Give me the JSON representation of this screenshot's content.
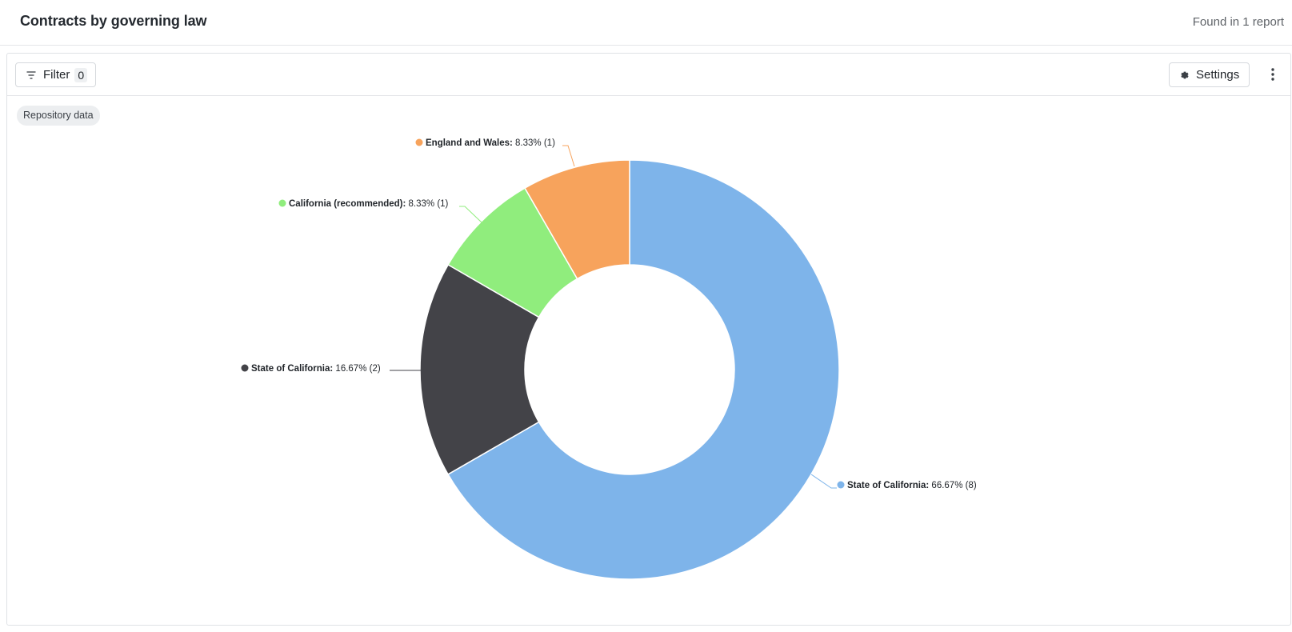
{
  "header": {
    "title": "Contracts by governing law",
    "found": "Found in 1 report"
  },
  "toolbar": {
    "filter_label": "Filter",
    "filter_count": "0",
    "settings_label": "Settings"
  },
  "tag": "Repository data",
  "colors": {
    "blue": "#7eb4ea",
    "dark": "#434348",
    "green": "#90ed7d",
    "orange": "#f7a35c"
  },
  "chart_data": {
    "type": "pie",
    "donut": true,
    "slices": [
      {
        "name": "State of California",
        "percent": 66.67,
        "count": 8,
        "color": "#7eb4ea",
        "label_value": "66.67% (8)"
      },
      {
        "name": "State of California",
        "percent": 16.67,
        "count": 2,
        "color": "#434348",
        "label_value": "16.67% (2)"
      },
      {
        "name": "California (recommended)",
        "percent": 8.33,
        "count": 1,
        "color": "#90ed7d",
        "label_value": "8.33% (1)"
      },
      {
        "name": "England and Wales",
        "percent": 8.33,
        "count": 1,
        "color": "#f7a35c",
        "label_value": "8.33% (1)"
      }
    ]
  }
}
